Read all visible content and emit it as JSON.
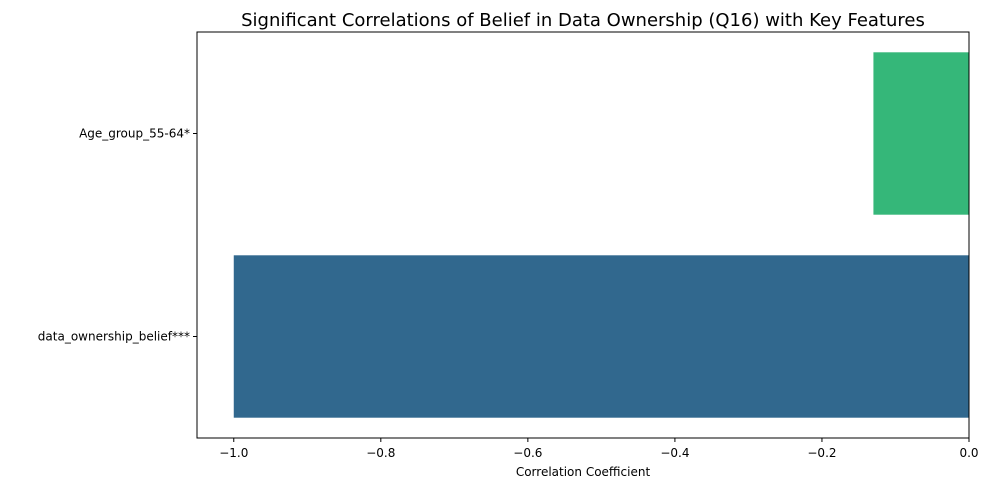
{
  "chart_data": {
    "type": "bar",
    "orientation": "horizontal",
    "title": "Significant Correlations of Belief in Data Ownership (Q16) with Key Features",
    "xlabel": "Correlation Coefficient",
    "ylabel": "",
    "xlim": [
      -1.05,
      0.0
    ],
    "categories": [
      "Age_group_55-64*",
      "data_ownership_belief***"
    ],
    "values": [
      -0.13,
      -1.0
    ],
    "colors": [
      "#35b779",
      "#31688e"
    ],
    "x_ticks": [
      -1.0,
      -0.8,
      -0.6,
      -0.4,
      -0.2,
      0.0
    ],
    "x_tick_labels": [
      "−1.0",
      "−0.8",
      "−0.6",
      "−0.4",
      "−0.2",
      "0.0"
    ],
    "grid": false,
    "legend": "none"
  }
}
